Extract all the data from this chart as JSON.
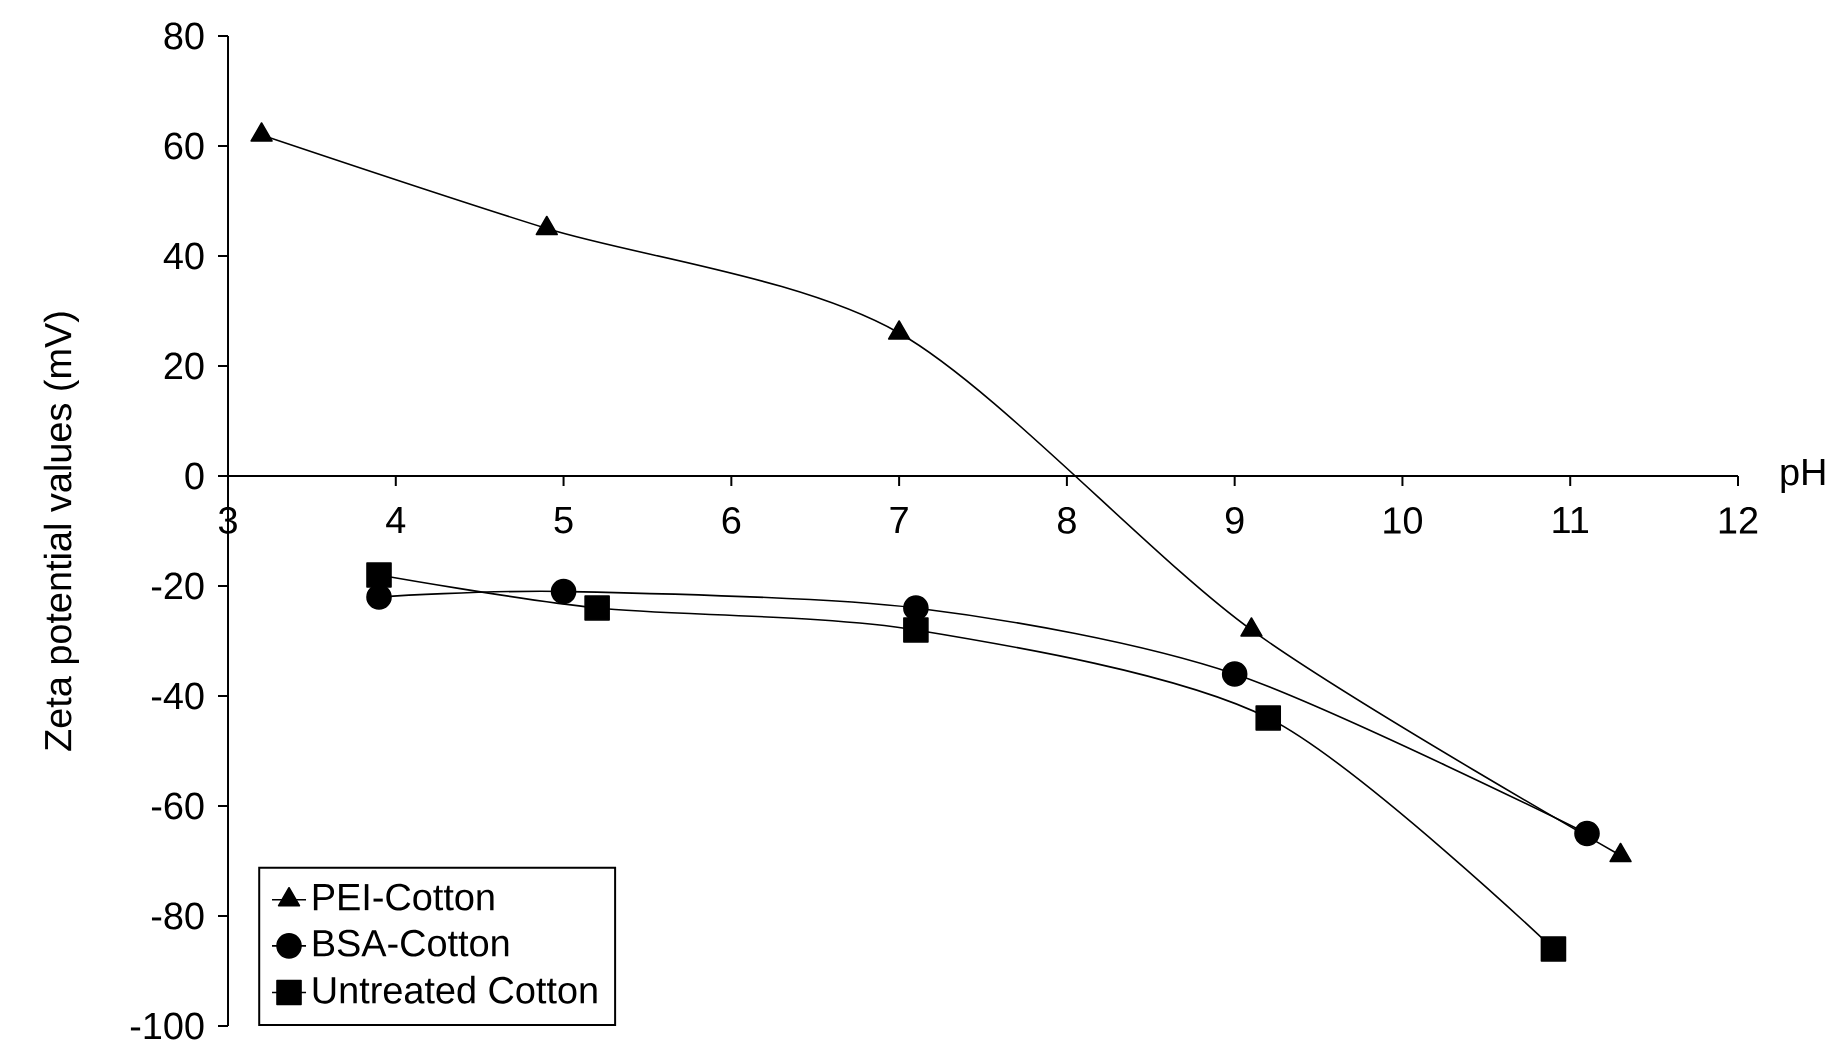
{
  "chart_data": {
    "type": "line",
    "xlabel": "pH",
    "ylabel": "Zeta potential values (mV)",
    "xlim": [
      3,
      12
    ],
    "xticks": [
      3,
      4,
      5,
      6,
      7,
      8,
      9,
      10,
      11,
      12
    ],
    "ylim": [
      -100,
      80
    ],
    "yticks": [
      -100,
      -80,
      -60,
      -40,
      -20,
      0,
      20,
      40,
      60,
      80
    ],
    "grid": false,
    "legend": "bottom left",
    "line_style": "solid",
    "series": [
      {
        "name": "PEI-Cotton",
        "color": "#000000",
        "marker": "triangle",
        "x": [
          3.2,
          4.9,
          7.0,
          9.1,
          11.3
        ],
        "values": [
          62,
          45,
          26,
          -28,
          -69
        ]
      },
      {
        "name": "BSA-Cotton",
        "color": "#000000",
        "marker": "circle",
        "x": [
          3.9,
          5.0,
          7.1,
          9.0,
          11.1
        ],
        "values": [
          -22,
          -21,
          -24,
          -36,
          -65
        ]
      },
      {
        "name": "Untreated Cotton",
        "color": "#000000",
        "marker": "square",
        "x": [
          3.9,
          5.2,
          7.1,
          9.2,
          10.9
        ],
        "values": [
          -18,
          -24,
          -28,
          -44,
          -86
        ]
      }
    ]
  }
}
